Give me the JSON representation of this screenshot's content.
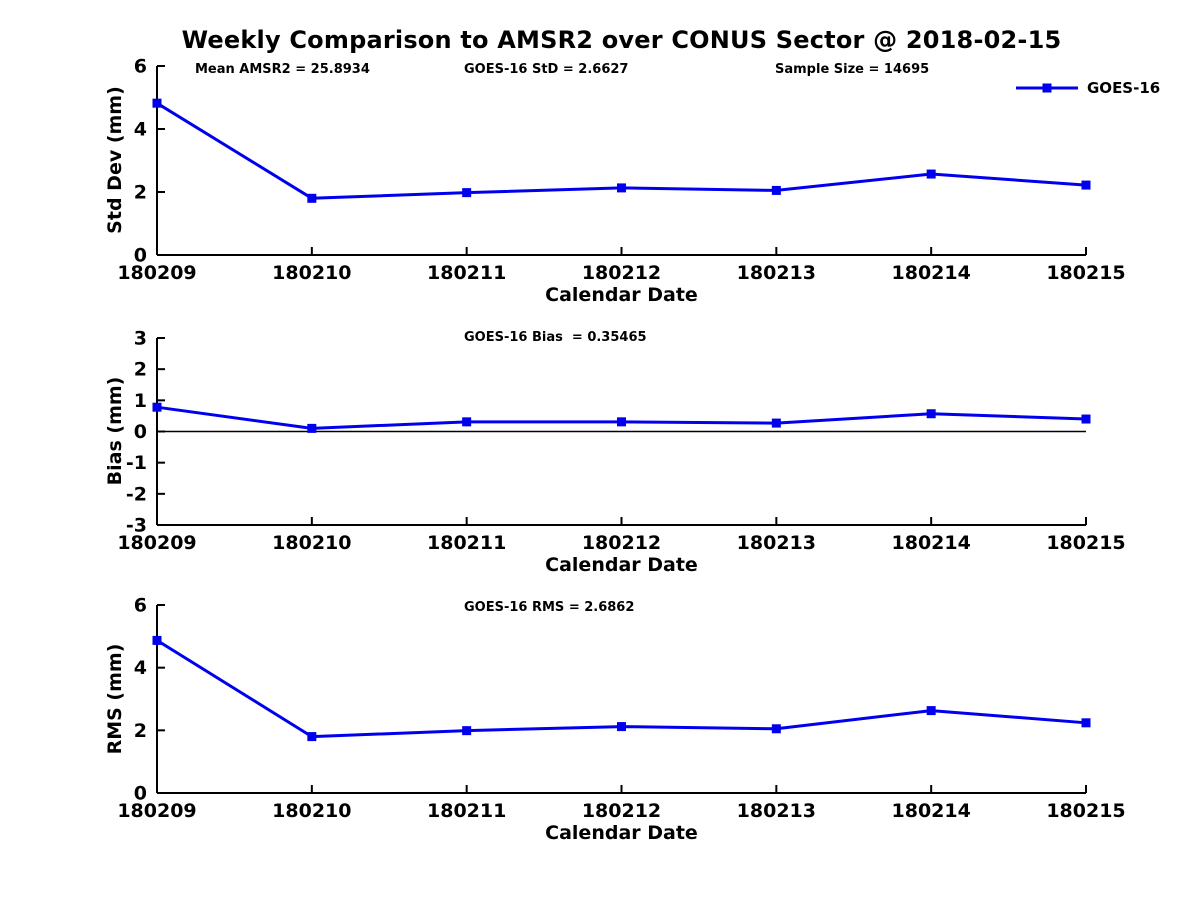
{
  "title": "Weekly Comparison to AMSR2 over CONUS Sector @ 2018-02-15",
  "header_stats": {
    "mean_amsr2": "Mean AMSR2 = 25.8934",
    "goes16_std": "GOES-16 StD = 2.6627",
    "sample_size": "Sample Size = 14695"
  },
  "legend": {
    "label": "GOES-16",
    "color": "#0000ee"
  },
  "chart_data": [
    {
      "type": "line",
      "title": "",
      "xlabel": "Calendar Date",
      "ylabel": "Std Dev (mm)",
      "categories": [
        "180209",
        "180210",
        "180211",
        "180212",
        "180213",
        "180214",
        "180215"
      ],
      "series": [
        {
          "name": "GOES-16",
          "values": [
            4.82,
            1.8,
            1.98,
            2.13,
            2.05,
            2.57,
            2.22
          ]
        }
      ],
      "ylim": [
        0,
        6
      ],
      "yticks": [
        0,
        2,
        4,
        6
      ],
      "grid": false,
      "zero_line": false,
      "line_color": "#0000ee",
      "marker": "square",
      "legend_position": "top-right"
    },
    {
      "type": "line",
      "title": "GOES-16 Bias  = 0.35465",
      "xlabel": "Calendar Date",
      "ylabel": "Bias (mm)",
      "categories": [
        "180209",
        "180210",
        "180211",
        "180212",
        "180213",
        "180214",
        "180215"
      ],
      "series": [
        {
          "name": "GOES-16",
          "values": [
            0.78,
            0.1,
            0.31,
            0.31,
            0.27,
            0.57,
            0.4
          ]
        }
      ],
      "ylim": [
        -3,
        3
      ],
      "yticks": [
        -3,
        -2,
        -1,
        0,
        1,
        2,
        3
      ],
      "grid": false,
      "zero_line": true,
      "line_color": "#0000ee",
      "marker": "square",
      "legend_position": "none"
    },
    {
      "type": "line",
      "title": "GOES-16 RMS = 2.6862",
      "xlabel": "Calendar Date",
      "ylabel": "RMS (mm)",
      "categories": [
        "180209",
        "180210",
        "180211",
        "180212",
        "180213",
        "180214",
        "180215"
      ],
      "series": [
        {
          "name": "GOES-16",
          "values": [
            4.87,
            1.8,
            1.99,
            2.12,
            2.05,
            2.63,
            2.24
          ]
        }
      ],
      "ylim": [
        0,
        6
      ],
      "yticks": [
        0,
        2,
        4,
        6
      ],
      "grid": false,
      "zero_line": false,
      "line_color": "#0000ee",
      "marker": "square",
      "legend_position": "none"
    }
  ]
}
